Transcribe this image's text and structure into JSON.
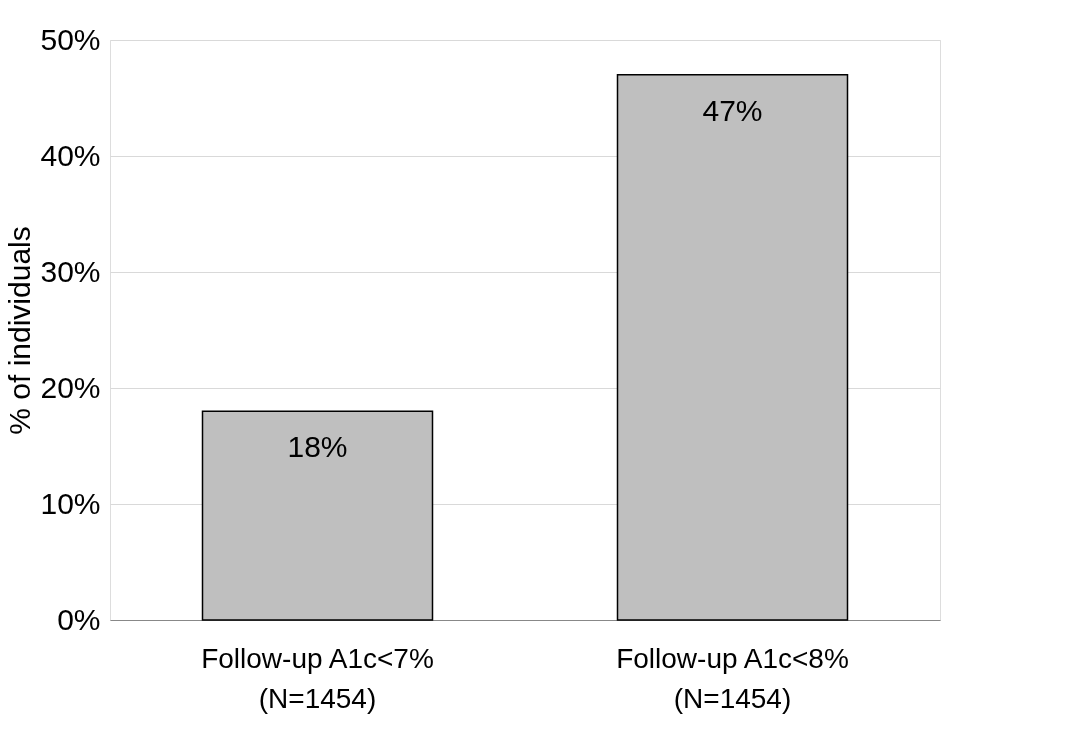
{
  "chart_data": {
    "type": "bar",
    "ylabel": "% of individuals",
    "categories": [
      "Follow-up A1c<7%\n(N=1454)",
      "Follow-up A1c<8%\n(N=1454)"
    ],
    "values": [
      18,
      47
    ],
    "value_labels": [
      "18%",
      "47%"
    ],
    "color": "#bfbfbf",
    "ylim": [
      0,
      50
    ],
    "yticks": [
      {
        "value": 0,
        "label": "0%"
      },
      {
        "value": 10,
        "label": "10%"
      },
      {
        "value": 20,
        "label": "20%"
      },
      {
        "value": 30,
        "label": "30%"
      },
      {
        "value": 40,
        "label": "40%"
      },
      {
        "value": 50,
        "label": "50%"
      }
    ],
    "grid": "y"
  }
}
